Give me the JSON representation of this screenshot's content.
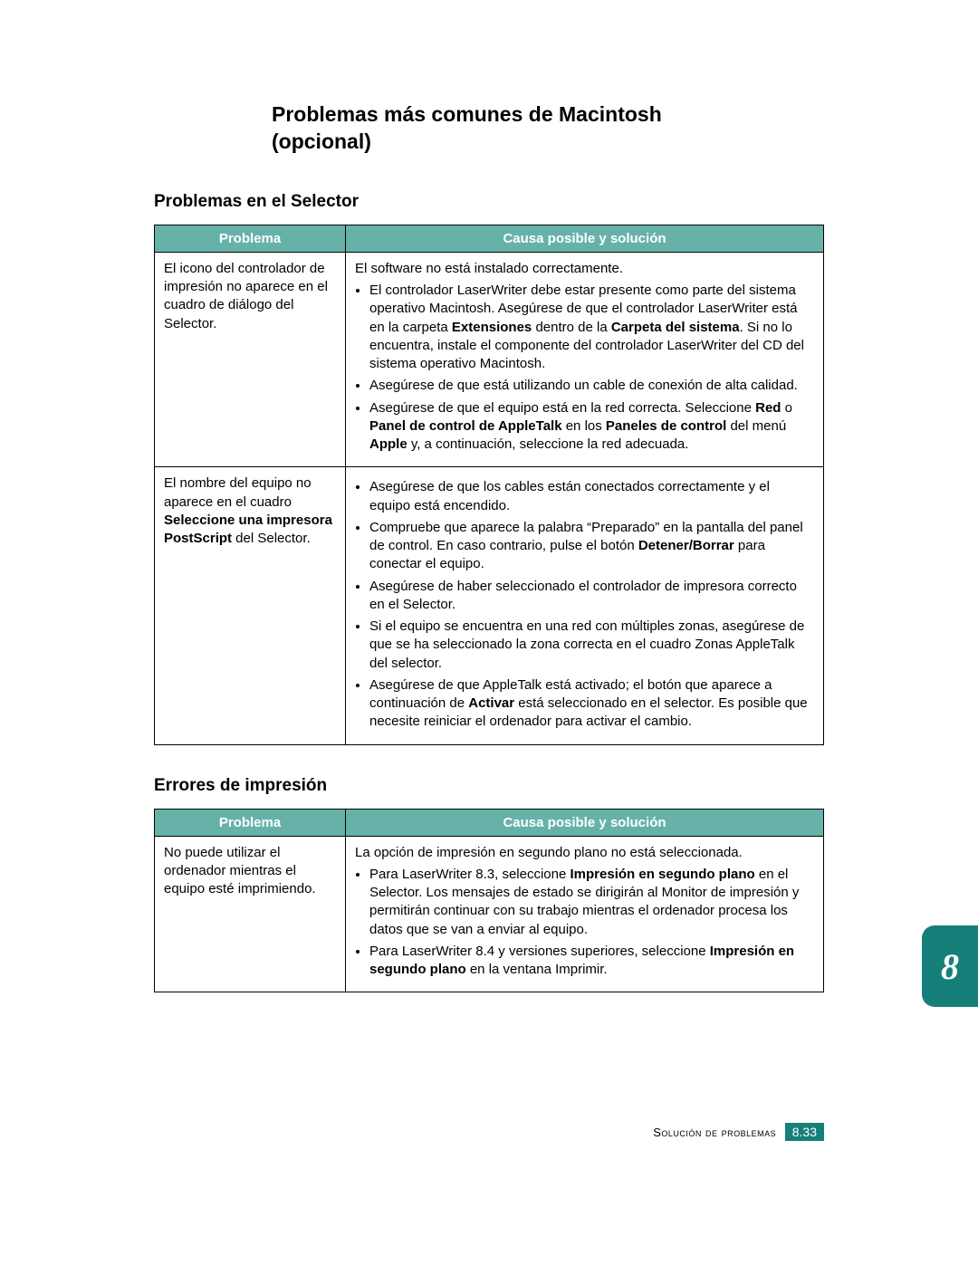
{
  "colors": {
    "header_bg": "#66b2a8",
    "header_text": "#ffffff",
    "tab_bg": "#177f7a",
    "tab_text": "#ffffff",
    "border": "#000000",
    "page_bg": "#ffffff",
    "body_text": "#000000"
  },
  "typography": {
    "body_font": "Verdana, Arial, sans-serif",
    "body_size_pt": 11,
    "h1_size_pt": 17,
    "h2_size_pt": 14,
    "tab_font": "Georgia, serif",
    "tab_size_pt": 30
  },
  "title_line1": "Problemas más comunes de Macintosh",
  "title_line2": "(opcional)",
  "section1_title": "Problemas en el Selector",
  "section2_title": "Errores de impresión",
  "table_headers": {
    "problem": "Problema",
    "solution": "Causa posible y solución"
  },
  "table1": {
    "rows": [
      {
        "problem_html": "El icono del controlador de impresión no aparece en el cuadro de diálogo del Selector.",
        "solution_lead": "El software no está instalado correctamente.",
        "solution_items_html": [
          "El controlador LaserWriter debe estar presente como parte del sistema operativo Macintosh. Asegúrese de que el controlador LaserWriter está en la carpeta <span class=\"b\">Extensiones</span> dentro de la <span class=\"b\">Carpeta del sistema</span>. Si no lo encuentra, instale el componente del controlador LaserWriter del CD del sistema operativo Macintosh.",
          "Asegúrese de que está utilizando un cable de conexión de alta calidad.",
          "Asegúrese de que el equipo está en la red correcta. Seleccione <span class=\"b\">Red</span> o <span class=\"b\">Panel de control de AppleTalk</span> en los <span class=\"b\">Paneles de control</span> del menú <span class=\"b\">Apple</span> y, a continuación, seleccione la red adecuada."
        ]
      },
      {
        "problem_html": "El nombre del equipo no aparece en el cuadro <span class=\"b\">Seleccione una impresora PostScript</span> del Selector.",
        "solution_lead": "",
        "solution_items_html": [
          "Asegúrese de que los cables están conectados correctamente y el equipo está encendido.",
          "Compruebe que aparece la palabra “Preparado” en la pantalla del panel de control. En caso contrario, pulse el botón <span class=\"b\">Detener/Borrar</span> para conectar el equipo.",
          "Asegúrese de haber seleccionado el controlador de impresora correcto en el Selector.",
          "Si el equipo se encuentra en una red con múltiples zonas, asegúrese de que se ha seleccionado la zona correcta en el cuadro Zonas AppleTalk del selector.",
          "Asegúrese de que AppleTalk está activado; el botón que aparece a continuación de <span class=\"b\">Activar</span> está seleccionado en el selector. Es posible que necesite reiniciar el ordenador para activar el cambio."
        ]
      }
    ]
  },
  "table2": {
    "rows": [
      {
        "problem_html": "No puede utilizar el ordenador mientras el equipo esté imprimiendo.",
        "solution_lead": "La opción de impresión en segundo plano no está seleccionada.",
        "solution_items_html": [
          "Para LaserWriter 8.3, seleccione <span class=\"b\">Impresión en segundo plano</span> en el Selector. Los mensajes de estado se dirigirán al Monitor de impresión y permitirán continuar con su trabajo mientras el ordenador procesa los datos que se van a enviar al equipo.",
          "Para LaserWriter 8.4 y versiones superiores, seleccione <span class=\"b\">Impresión en segundo plano</span> en la ventana Imprimir."
        ]
      }
    ]
  },
  "chapter_tab": "8",
  "footer": {
    "label": "Solución de problemas",
    "page": "8.33"
  }
}
